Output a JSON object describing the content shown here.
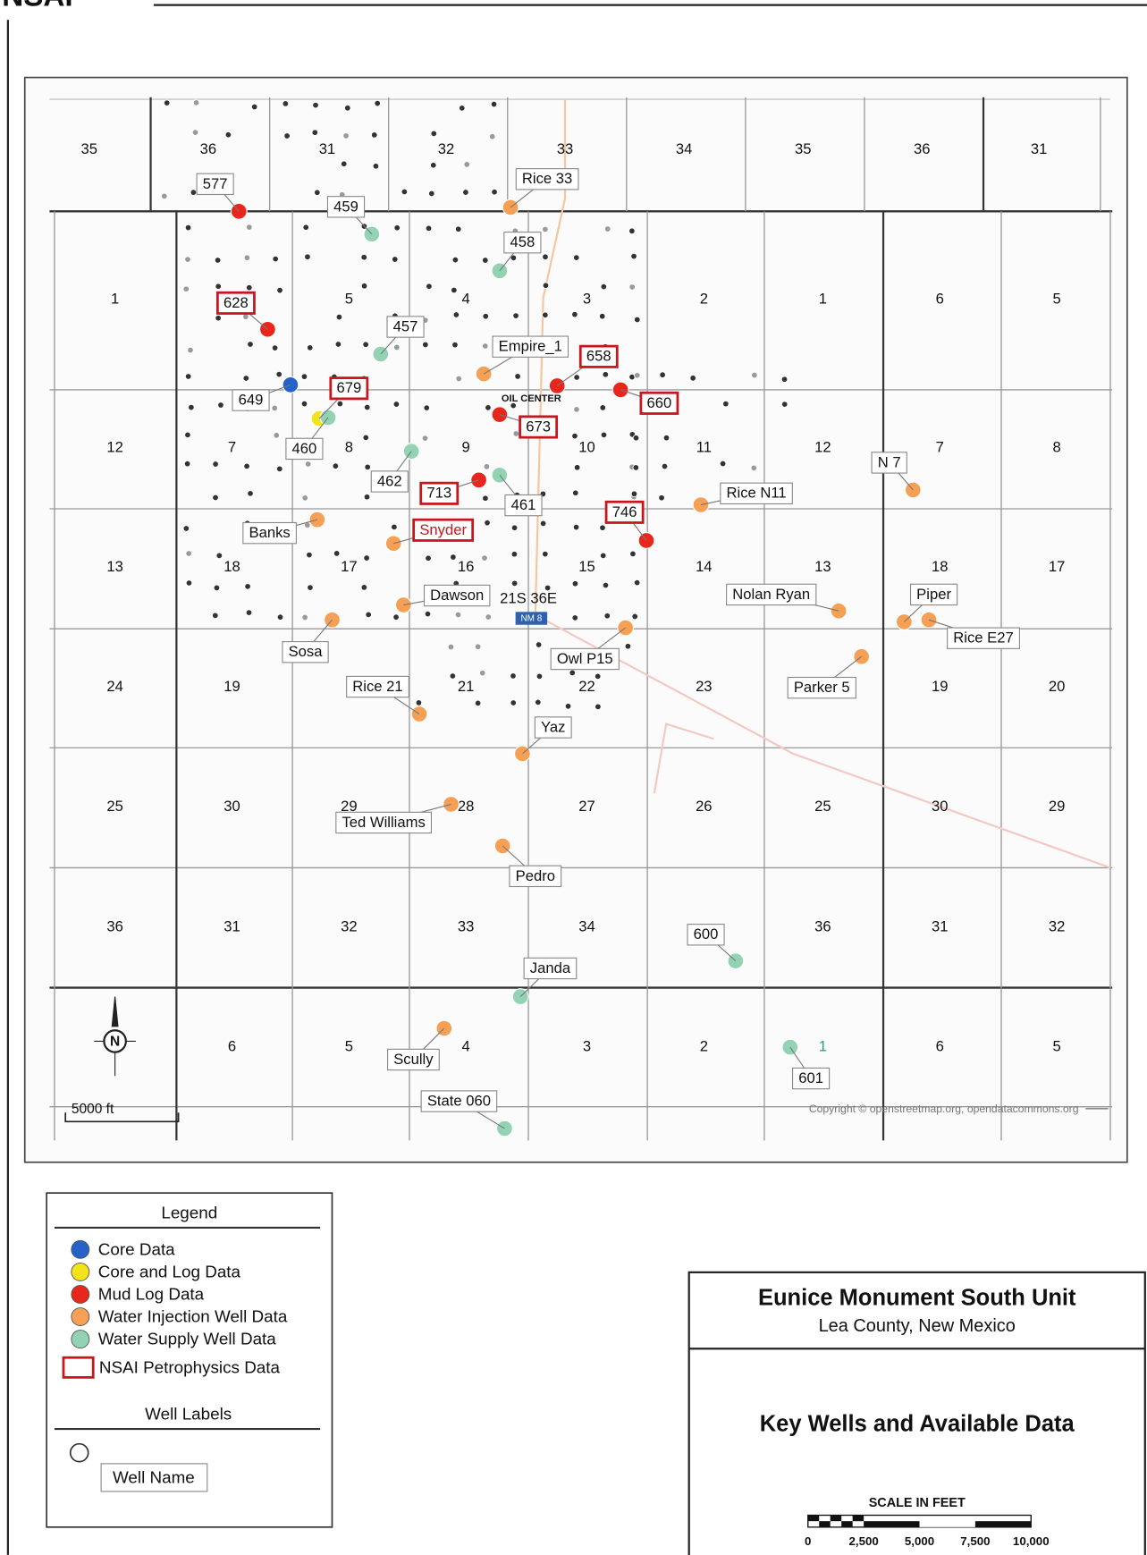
{
  "header": {
    "logo": "NSAI"
  },
  "map": {
    "sections": [
      [
        "35",
        "36",
        "31",
        "32",
        "33",
        "34",
        "35",
        "36",
        "31"
      ],
      [
        "1",
        null,
        "5",
        "4",
        "3",
        "2",
        "1",
        "6",
        "5"
      ],
      [
        "12",
        "7",
        "8",
        "9",
        "10",
        "11",
        "12",
        "7",
        "8"
      ],
      [
        "13",
        "18",
        "17",
        "16",
        "15",
        "14",
        "13",
        "18",
        "17"
      ],
      [
        "24",
        "19",
        null,
        "21",
        "22",
        "23",
        null,
        "19",
        "20"
      ],
      [
        "25",
        "30",
        "29",
        "28",
        "27",
        "26",
        "25",
        "30",
        "29"
      ],
      [
        "36",
        "31",
        "32",
        "33",
        "34",
        null,
        "36",
        "31",
        "32"
      ],
      [
        null,
        "6",
        "5",
        "4",
        "3",
        "2",
        "1",
        "6",
        "5"
      ]
    ],
    "wells": [
      {
        "label": "577",
        "data": "mud",
        "petrophysics": false
      },
      {
        "label": "459",
        "data": "supply",
        "petrophysics": false
      },
      {
        "label": "Rice 33",
        "data": "injection",
        "petrophysics": false
      },
      {
        "label": "458",
        "data": "supply",
        "petrophysics": false
      },
      {
        "label": "628",
        "data": "mud",
        "petrophysics": true
      },
      {
        "label": "457",
        "data": "supply",
        "petrophysics": false
      },
      {
        "label": "Empire_1",
        "data": "injection",
        "petrophysics": false
      },
      {
        "label": "658",
        "data": "mud",
        "petrophysics": true
      },
      {
        "label": "649",
        "data": "core",
        "petrophysics": false
      },
      {
        "label": "679",
        "data": "core_log",
        "petrophysics": true
      },
      {
        "label": "460",
        "data": "supply",
        "petrophysics": false
      },
      {
        "label": "660",
        "data": "mud",
        "petrophysics": true
      },
      {
        "label": "673",
        "data": "mud",
        "petrophysics": true
      },
      {
        "label": "462",
        "data": "supply",
        "petrophysics": false
      },
      {
        "label": "713",
        "data": "mud",
        "petrophysics": true
      },
      {
        "label": "461",
        "data": "supply",
        "petrophysics": false
      },
      {
        "label": "746",
        "data": "mud",
        "petrophysics": true
      },
      {
        "label": "Rice N11",
        "data": "injection",
        "petrophysics": false
      },
      {
        "label": "N 7",
        "data": "injection",
        "petrophysics": false
      },
      {
        "label": "Banks",
        "data": "injection",
        "petrophysics": false
      },
      {
        "label": "Snyder",
        "data": "injection",
        "petrophysics": true
      },
      {
        "label": "Dawson",
        "data": "injection",
        "petrophysics": false
      },
      {
        "label": "Sosa",
        "data": "injection",
        "petrophysics": false
      },
      {
        "label": "Nolan Ryan",
        "data": "injection",
        "petrophysics": false
      },
      {
        "label": "Piper",
        "data": "injection",
        "petrophysics": false
      },
      {
        "label": "Rice E27",
        "data": "injection",
        "petrophysics": false
      },
      {
        "label": "Owl P15",
        "data": "injection",
        "petrophysics": false
      },
      {
        "label": "Parker 5",
        "data": "injection",
        "petrophysics": false
      },
      {
        "label": "Rice 21",
        "data": "injection",
        "petrophysics": false
      },
      {
        "label": "Yaz",
        "data": "injection",
        "petrophysics": false
      },
      {
        "label": "Ted Williams",
        "data": "injection",
        "petrophysics": false
      },
      {
        "label": "Pedro",
        "data": "injection",
        "petrophysics": false
      },
      {
        "label": "600",
        "data": "supply",
        "petrophysics": false
      },
      {
        "label": "Janda",
        "data": "supply",
        "petrophysics": false
      },
      {
        "label": "Scully",
        "data": "injection",
        "petrophysics": false
      },
      {
        "label": "601",
        "data": "supply",
        "petrophysics": false
      },
      {
        "label": "State 060",
        "data": "supply",
        "petrophysics": false
      }
    ],
    "annotations": {
      "town": "OIL CENTER",
      "township": "21S 36E",
      "highway": "NM 8",
      "north": "N",
      "scale_bar": "5000 ft",
      "copyright": "Copyright © openstreetmap.org, opendatacommons.org"
    }
  },
  "legend": {
    "title": "Legend",
    "items": [
      {
        "key": "core",
        "label": "Core Data",
        "color": "#2462c8"
      },
      {
        "key": "core_log",
        "label": "Core and Log Data",
        "color": "#f4e21a"
      },
      {
        "key": "mud",
        "label": "Mud Log Data",
        "color": "#e8261c"
      },
      {
        "key": "injection",
        "label": "Water Injection Well Data",
        "color": "#f6a056"
      },
      {
        "key": "supply",
        "label": "Water Supply Well Data",
        "color": "#93d3b4"
      }
    ],
    "petrophysics": "NSAI Petrophysics Data",
    "well_labels_title": "Well Labels",
    "well_name": "Well Name"
  },
  "title_block": {
    "title": "Eunice Monument South Unit",
    "subtitle": "Lea County, New Mexico",
    "heading": "Key Wells and Available Data",
    "scale_title": "SCALE IN FEET",
    "scale_labels": [
      "0",
      "2,500",
      "5,000",
      "7,500",
      "10,000"
    ]
  }
}
